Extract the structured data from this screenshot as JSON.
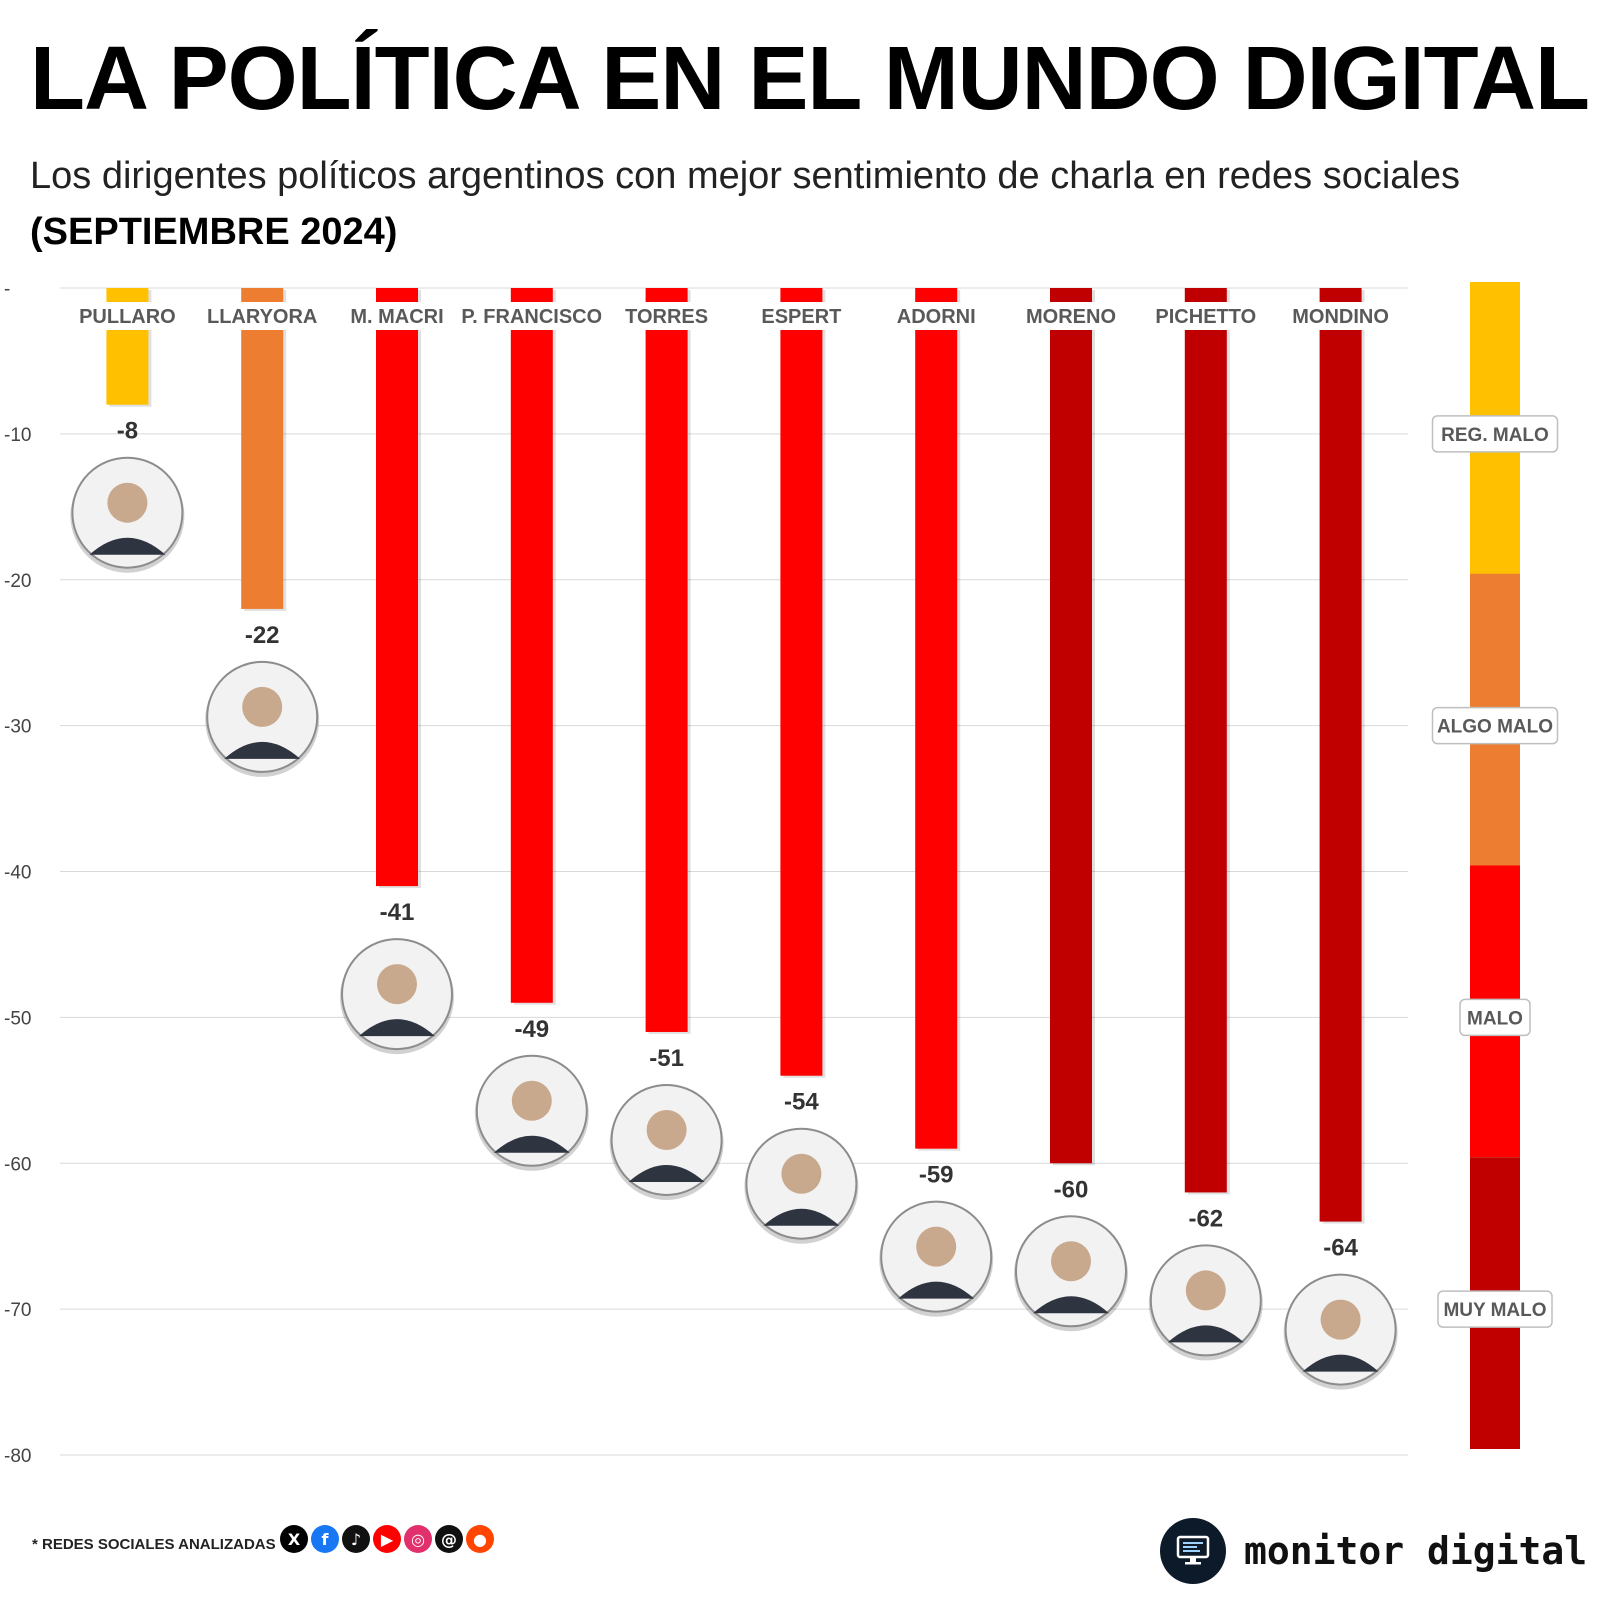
{
  "title": "LA POLÍTICA EN EL MUNDO DIGITAL",
  "subtitle_main": "Los dirigentes políticos argentinos con mejor sentimiento de charla en redes sociales",
  "subtitle_bold": "(SEPTIEMBRE 2024)",
  "chart_data": {
    "type": "bar",
    "title": "LA POLÍTICA EN EL MUNDO DIGITAL",
    "ylim": [
      -80,
      0
    ],
    "yticks": [
      "-",
      "-10",
      "-20",
      "-30",
      "-40",
      "-50",
      "-60",
      "-70",
      "-80"
    ],
    "ytick_values": [
      0,
      -10,
      -20,
      -30,
      -40,
      -50,
      -60,
      -70,
      -80
    ],
    "categories": [
      "PULLARO",
      "LLARYORA",
      "M. MACRI",
      "P. FRANCISCO",
      "TORRES",
      "ESPERT",
      "ADORNI",
      "MORENO",
      "PICHETTO",
      "MONDINO"
    ],
    "values": [
      -8,
      -22,
      -41,
      -49,
      -51,
      -54,
      -59,
      -60,
      -62,
      -64
    ],
    "value_labels": [
      "-8",
      "-22",
      "-41",
      "-49",
      "-51",
      "-54",
      "-59",
      "-60",
      "-62",
      "-64"
    ],
    "bar_colors": [
      "#FFC000",
      "#ED7D31",
      "#FF0000",
      "#FF0000",
      "#FF0000",
      "#FF0000",
      "#FF0000",
      "#C00000",
      "#C00000",
      "#C00000"
    ],
    "scale": [
      {
        "label": "REG. MALO",
        "from": 0,
        "to": -20,
        "color": "#FFC000"
      },
      {
        "label": "ALGO MALO",
        "from": -20,
        "to": -40,
        "color": "#ED7D31"
      },
      {
        "label": "MALO",
        "from": -40,
        "to": -60,
        "color": "#FF0000"
      },
      {
        "label": "MUY MALO",
        "from": -60,
        "to": -80,
        "color": "#C00000"
      }
    ],
    "grid": true
  },
  "footer": {
    "note": "* REDES SOCIALES ANALIZADAS",
    "icons": [
      {
        "name": "x-icon",
        "glyph": "X",
        "color": "#000000"
      },
      {
        "name": "facebook-icon",
        "glyph": "f",
        "color": "#1877F2"
      },
      {
        "name": "tiktok-icon",
        "glyph": "♪",
        "color": "#111111"
      },
      {
        "name": "youtube-icon",
        "glyph": "▶",
        "color": "#FF0000"
      },
      {
        "name": "instagram-icon",
        "glyph": "◎",
        "color": "#E1306C"
      },
      {
        "name": "threads-icon",
        "glyph": "@",
        "color": "#111111"
      },
      {
        "name": "reddit-icon",
        "glyph": "●",
        "color": "#FF4500"
      }
    ]
  },
  "brand": {
    "name": "monitor digital"
  }
}
